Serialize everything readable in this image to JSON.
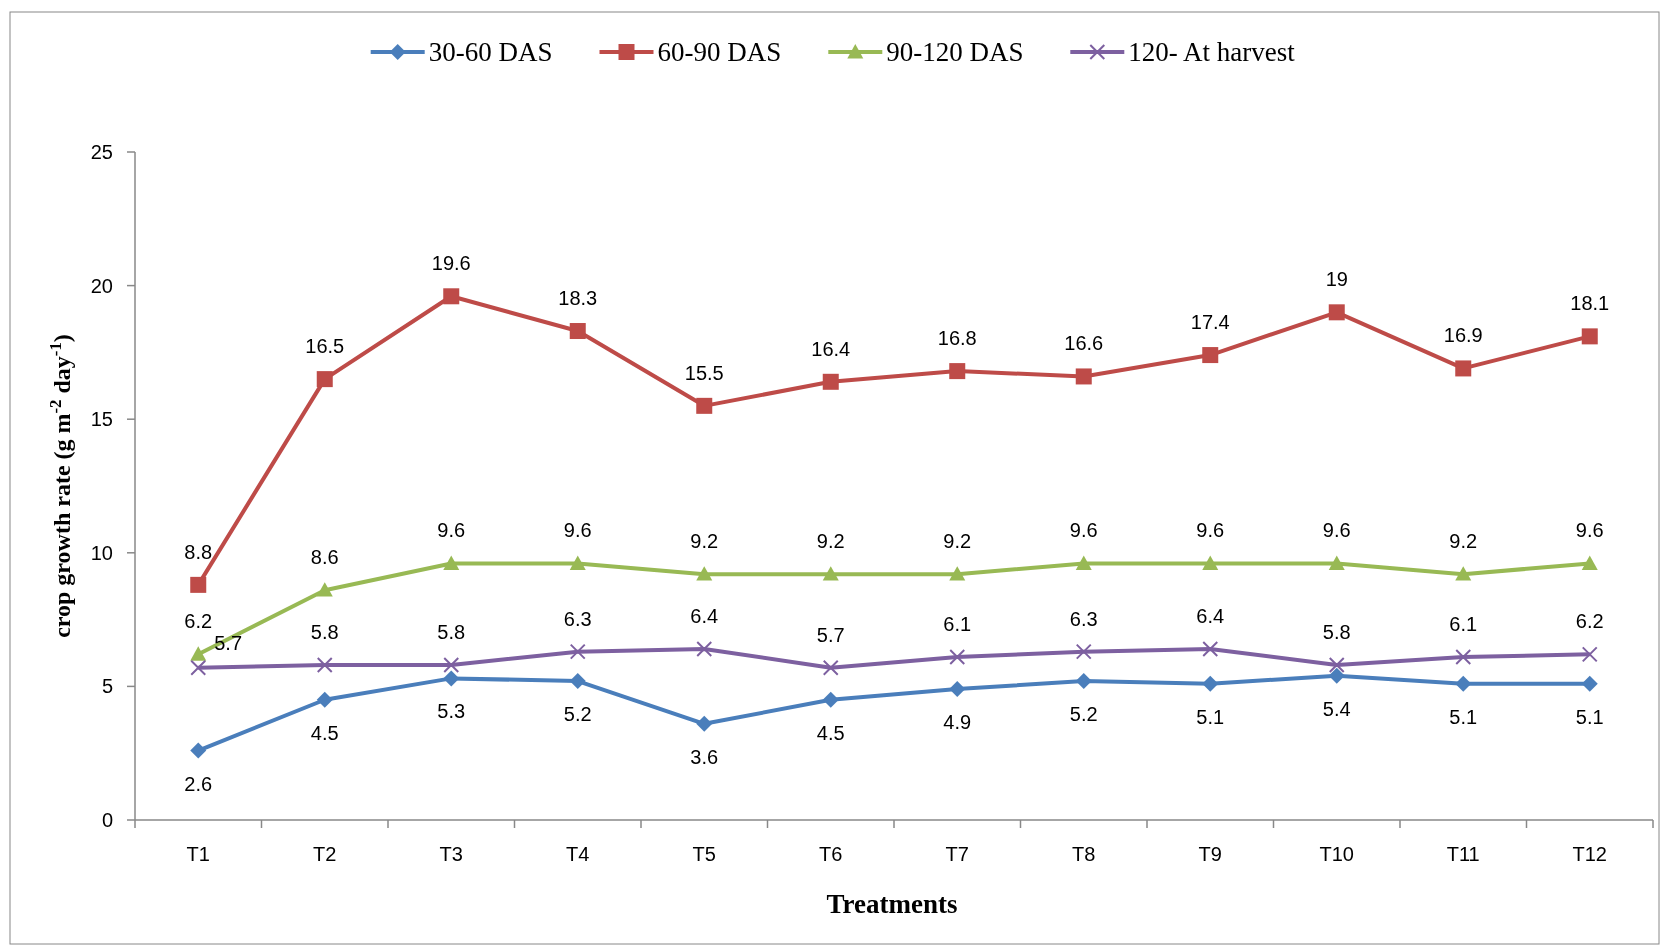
{
  "chart_data": {
    "type": "line",
    "xlabel": "Treatments",
    "ylabel": "crop growth rate (g m$^{-2}$ day$^{-1}$)",
    "categories": [
      "T1",
      "T2",
      "T3",
      "T4",
      "T5",
      "T6",
      "T7",
      "T8",
      "T9",
      "T10",
      "T11",
      "T12"
    ],
    "ylim": [
      0,
      25
    ],
    "yticks": [
      0,
      5,
      10,
      15,
      20,
      25
    ],
    "grid": false,
    "legend": "top",
    "data_labels": true,
    "series": [
      {
        "name": "30-60 DAS",
        "color": "#4a7ebb",
        "marker": "diamond",
        "values": [
          2.6,
          4.5,
          5.3,
          5.2,
          3.6,
          4.5,
          4.9,
          5.2,
          5.1,
          5.4,
          5.1,
          5.1
        ]
      },
      {
        "name": "60-90 DAS",
        "color": "#be4b48",
        "marker": "square",
        "values": [
          8.8,
          16.5,
          19.6,
          18.3,
          15.5,
          16.4,
          16.8,
          16.6,
          17.4,
          19,
          16.9,
          18.1
        ]
      },
      {
        "name": "90-120 DAS",
        "color": "#98b954",
        "marker": "triangle",
        "values": [
          6.2,
          8.6,
          9.6,
          9.6,
          9.2,
          9.2,
          9.2,
          9.6,
          9.6,
          9.6,
          9.2,
          9.6
        ]
      },
      {
        "name": "120- At harvest",
        "color": "#7d60a0",
        "marker": "cross",
        "values": [
          5.7,
          5.8,
          5.8,
          6.3,
          6.4,
          5.7,
          6.1,
          6.3,
          6.4,
          5.8,
          6.1,
          6.2
        ]
      }
    ]
  }
}
